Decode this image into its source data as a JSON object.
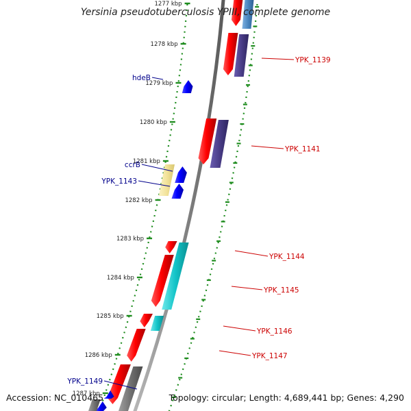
{
  "title": "Yersinia pseudotuberculosis YPIII, complete genome",
  "footer": {
    "accession": "Accession: NC_010465",
    "summary": "Topology: circular; Length: 4,689,441 bp; Genes: 4,290"
  },
  "colors": {
    "backbone": "#8a8a8a",
    "ticks": "#1e8c1e",
    "forward_cds": "#ff0000",
    "reverse_cds": "#0000ff",
    "gene_purple": "#4a3d88",
    "gene_steel": "#4a86c0",
    "gene_cyan": "#13c4c8",
    "gene_gray": "#707070",
    "gene_yellow": "#f2e39a",
    "label_red": "#cc0000",
    "label_blue": "#00008b"
  },
  "scale_labels": [
    "1277 kbp",
    "1278 kbp",
    "1279 kbp",
    "1280 kbp",
    "1281 kbp",
    "1282 kbp",
    "1283 kbp",
    "1284 kbp",
    "1285 kbp",
    "1286 kbp",
    "1287 kbp"
  ],
  "gene_labels": {
    "right": [
      "YPK_1139",
      "YPK_1141",
      "YPK_1144",
      "YPK_1145",
      "YPK_1146",
      "YPK_1147"
    ],
    "left": [
      "hdeB",
      "ccrB",
      "YPK_1143",
      "YPK_1149"
    ]
  }
}
